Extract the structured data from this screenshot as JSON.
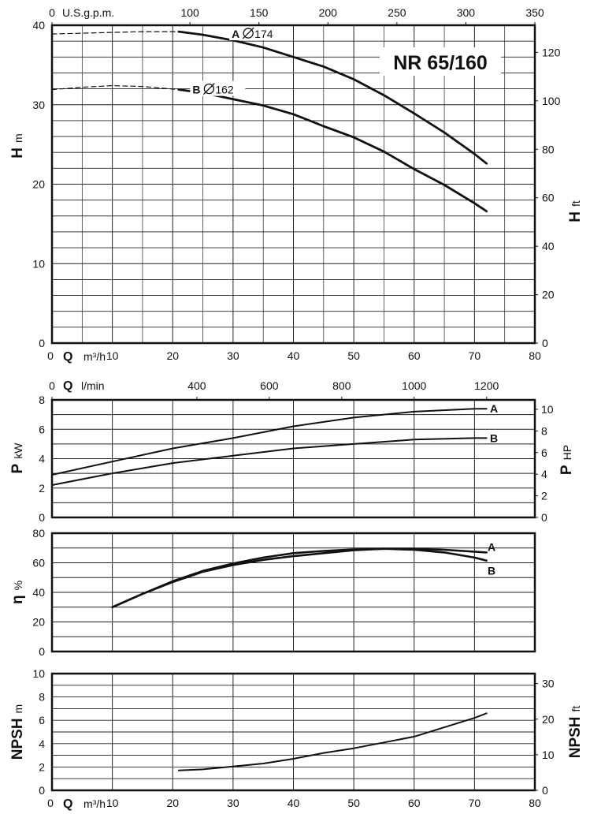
{
  "model_label": "NR 65/160",
  "chart_data": [
    {
      "id": "head",
      "type": "line",
      "x_axis_bottom": {
        "symbol": "Q",
        "unit": "m³/h",
        "range": [
          0,
          80
        ],
        "ticks": [
          0,
          10,
          20,
          30,
          40,
          50,
          60,
          70,
          80
        ]
      },
      "x_axis_top": {
        "unit": "U.S.g.p.m.",
        "range": [
          0,
          350
        ],
        "ticks": [
          0,
          100,
          150,
          200,
          250,
          300,
          350
        ]
      },
      "y_axis_left": {
        "symbol": "H",
        "unit": "m",
        "range": [
          0,
          40
        ],
        "ticks": [
          0,
          10,
          20,
          30,
          40
        ]
      },
      "y_axis_right": {
        "symbol": "H",
        "unit": "ft",
        "range": [
          0,
          131.2
        ],
        "ticks": [
          0,
          20,
          40,
          60,
          80,
          100,
          120
        ]
      },
      "grid": true,
      "series": [
        {
          "name": "A",
          "label_diameter": "174",
          "x": [
            21,
            25,
            30,
            35,
            40,
            45,
            50,
            55,
            60,
            65,
            70,
            72
          ],
          "y": [
            39.2,
            38.8,
            38.1,
            37.2,
            36.0,
            34.8,
            33.2,
            31.2,
            28.9,
            26.5,
            23.8,
            22.6
          ],
          "dashed_x": [
            0,
            5,
            10,
            15,
            21
          ],
          "dashed_y": [
            38.9,
            39.0,
            39.1,
            39.2,
            39.2
          ]
        },
        {
          "name": "B",
          "label_diameter": "162",
          "x": [
            21,
            25,
            30,
            35,
            40,
            45,
            50,
            55,
            60,
            65,
            70,
            72
          ],
          "y": [
            31.9,
            31.5,
            30.7,
            29.9,
            28.8,
            27.3,
            25.9,
            24.1,
            21.9,
            19.9,
            17.6,
            16.6
          ],
          "dashed_x": [
            0,
            5,
            10,
            15,
            21
          ],
          "dashed_y": [
            31.9,
            32.2,
            32.4,
            32.3,
            31.9
          ]
        }
      ]
    },
    {
      "id": "power",
      "type": "line",
      "x_axis_top": {
        "symbol": "Q",
        "unit": "l/min",
        "range": [
          0,
          1333.3
        ],
        "ticks": [
          0,
          400,
          600,
          800,
          1000,
          1200
        ]
      },
      "y_axis_left": {
        "symbol": "P",
        "unit": "kW",
        "range": [
          0,
          8
        ],
        "ticks": [
          0,
          2,
          4,
          6,
          8
        ]
      },
      "y_axis_right": {
        "symbol": "P",
        "unit": "HP",
        "range": [
          0,
          10.87
        ],
        "ticks": [
          0,
          2,
          4,
          6,
          8,
          10
        ]
      },
      "x_range_m3h": [
        0,
        80
      ],
      "grid": true,
      "series": [
        {
          "name": "A",
          "x": [
            0,
            10,
            20,
            30,
            40,
            50,
            60,
            70,
            72
          ],
          "y": [
            2.9,
            3.8,
            4.7,
            5.4,
            6.2,
            6.8,
            7.2,
            7.4,
            7.4
          ]
        },
        {
          "name": "B",
          "x": [
            0,
            10,
            20,
            30,
            40,
            50,
            60,
            70,
            72
          ],
          "y": [
            2.2,
            3.0,
            3.7,
            4.2,
            4.7,
            5.0,
            5.3,
            5.4,
            5.4
          ]
        }
      ]
    },
    {
      "id": "efficiency",
      "type": "line",
      "y_axis_left": {
        "symbol": "η",
        "unit": "%",
        "range": [
          0,
          80
        ],
        "ticks": [
          0,
          20,
          40,
          60,
          80
        ]
      },
      "x_range_m3h": [
        0,
        80
      ],
      "grid": true,
      "series": [
        {
          "name": "A",
          "x": [
            10,
            15,
            20,
            25,
            30,
            35,
            40,
            45,
            50,
            55,
            60,
            65,
            70,
            72
          ],
          "y": [
            30,
            39,
            47,
            54,
            58.5,
            62,
            64.5,
            66.5,
            68.5,
            69.5,
            69.5,
            68.8,
            67.5,
            67
          ]
        },
        {
          "name": "B",
          "x": [
            10,
            15,
            20,
            25,
            30,
            35,
            40,
            45,
            50,
            55,
            60,
            65,
            70,
            72
          ],
          "y": [
            30,
            39,
            47.5,
            54.5,
            59.5,
            63.5,
            66.5,
            68,
            69,
            69.5,
            68.8,
            67,
            63.5,
            61.5
          ]
        }
      ]
    },
    {
      "id": "npsh",
      "type": "line",
      "x_axis_bottom": {
        "symbol": "Q",
        "unit": "m³/h",
        "range": [
          0,
          80
        ],
        "ticks": [
          0,
          10,
          20,
          30,
          40,
          50,
          60,
          70,
          80
        ]
      },
      "y_axis_left": {
        "symbol": "NPSH",
        "unit": "m",
        "range": [
          0,
          10
        ],
        "ticks": [
          0,
          2,
          4,
          6,
          8,
          10
        ]
      },
      "y_axis_right": {
        "symbol": "NPSH",
        "unit": "ft",
        "range": [
          0,
          32.8
        ],
        "ticks": [
          0,
          10,
          20,
          30
        ]
      },
      "grid": true,
      "series": [
        {
          "name": "NPSH",
          "x": [
            21,
            25,
            30,
            35,
            40,
            45,
            50,
            55,
            60,
            65,
            70,
            72
          ],
          "y": [
            1.7,
            1.8,
            2.05,
            2.3,
            2.7,
            3.2,
            3.6,
            4.1,
            4.6,
            5.4,
            6.2,
            6.6
          ]
        }
      ]
    }
  ]
}
